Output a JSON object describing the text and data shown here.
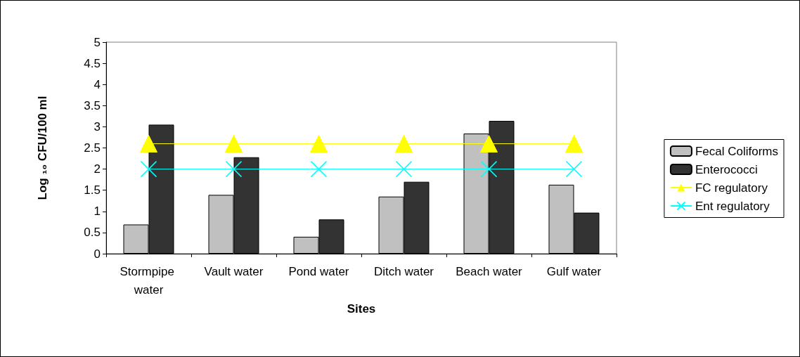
{
  "chart_data": {
    "type": "bar",
    "xlabel": "Sites",
    "ylabel": "Log ₁₀ CFU/100 ml",
    "categories": [
      "Stormpipe water",
      "Vault water",
      "Pond water",
      "Ditch water",
      "Beach water",
      "Gulf water"
    ],
    "series": [
      {
        "name": "Fecal Coliforms",
        "color": "#c0c0c0",
        "values": [
          0.69,
          1.39,
          0.4,
          1.35,
          2.84,
          1.63
        ]
      },
      {
        "name": "Enterococci",
        "color": "#333333",
        "values": [
          3.05,
          2.28,
          0.81,
          1.7,
          3.14,
          0.97
        ]
      },
      {
        "name": "FC regulatory",
        "type": "line",
        "color": "#ffff00",
        "marker": "triangle",
        "line_style": "solid",
        "values": [
          2.6,
          2.6,
          2.6,
          2.6,
          2.6,
          2.6
        ]
      },
      {
        "name": "Ent regulatory",
        "type": "line",
        "color": "#00ffff",
        "marker": "cross",
        "line_style": "solid",
        "values": [
          2,
          2,
          2,
          2,
          2,
          2
        ]
      }
    ],
    "ylim": [
      0,
      5
    ],
    "yticks": [
      0,
      0.5,
      1,
      1.5,
      2,
      2.5,
      3,
      3.5,
      4,
      4.5,
      5
    ],
    "grid": false,
    "legend": "right"
  }
}
